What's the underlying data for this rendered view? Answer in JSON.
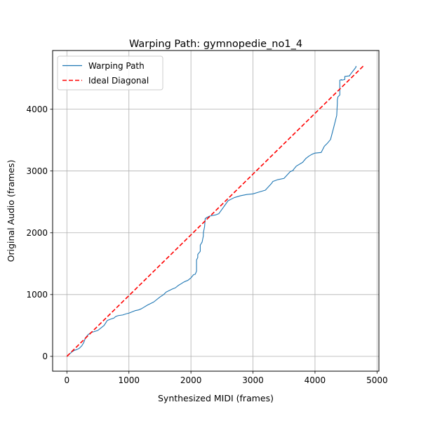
{
  "chart_data": {
    "type": "line",
    "title": "Warping Path: gymnopedie_no1_4",
    "xlabel": "Synthesized MIDI (frames)",
    "ylabel": "Original Audio (frames)",
    "xlim": [
      -230,
      5030
    ],
    "ylim": [
      -240,
      4950
    ],
    "xticks": [
      0,
      1000,
      2000,
      3000,
      4000,
      5000
    ],
    "yticks": [
      0,
      1000,
      2000,
      3000,
      4000
    ],
    "grid": true,
    "legend_position": "upper-left",
    "series": [
      {
        "name": "Warping Path",
        "color": "#1f77b4",
        "style": "solid",
        "x": [
          0,
          90,
          130,
          160,
          200,
          240,
          270,
          300,
          340,
          380,
          400,
          440,
          500,
          550,
          600,
          650,
          700,
          760,
          780,
          800,
          830,
          900,
          960,
          1000,
          1100,
          1150,
          1200,
          1250,
          1300,
          1400,
          1500,
          1560,
          1600,
          1640,
          1700,
          1750,
          1800,
          1850,
          1880,
          1900,
          1950,
          2000,
          2040,
          2070,
          2090,
          2090,
          2110,
          2110,
          2150,
          2150,
          2180,
          2190,
          2200,
          2200,
          2220,
          2230,
          2260,
          2300,
          2400,
          2450,
          2500,
          2550,
          2600,
          2700,
          2800,
          2900,
          3000,
          3100,
          3200,
          3300,
          3320,
          3400,
          3500,
          3600,
          3650,
          3650,
          3700,
          3800,
          3850,
          3900,
          3950,
          4000,
          4100,
          4150,
          4200,
          4250,
          4300,
          4350,
          4360,
          4360,
          4370,
          4400,
          4400,
          4430,
          4430,
          4480,
          4480,
          4560,
          4560,
          4660,
          4660
        ],
        "y": [
          0,
          80,
          100,
          110,
          130,
          170,
          220,
          300,
          350,
          380,
          390,
          400,
          420,
          460,
          500,
          580,
          600,
          620,
          640,
          650,
          660,
          670,
          690,
          700,
          740,
          750,
          770,
          800,
          830,
          880,
          960,
          1000,
          1040,
          1060,
          1090,
          1110,
          1150,
          1180,
          1200,
          1210,
          1230,
          1270,
          1320,
          1330,
          1380,
          1560,
          1600,
          1650,
          1700,
          1800,
          1850,
          1900,
          1950,
          2000,
          2100,
          2230,
          2250,
          2270,
          2290,
          2310,
          2380,
          2450,
          2520,
          2570,
          2600,
          2620,
          2630,
          2660,
          2690,
          2800,
          2830,
          2860,
          2880,
          2990,
          3010,
          3020,
          3080,
          3140,
          3200,
          3240,
          3270,
          3290,
          3300,
          3400,
          3450,
          3510,
          3700,
          3900,
          4100,
          4150,
          4200,
          4230,
          4470,
          4480,
          4470,
          4480,
          4530,
          4540,
          4550,
          4680,
          4700
        ]
      },
      {
        "name": "Ideal Diagonal",
        "color": "#ff0000",
        "style": "dashed",
        "x": [
          0,
          4780
        ],
        "y": [
          0,
          4700
        ]
      }
    ]
  }
}
